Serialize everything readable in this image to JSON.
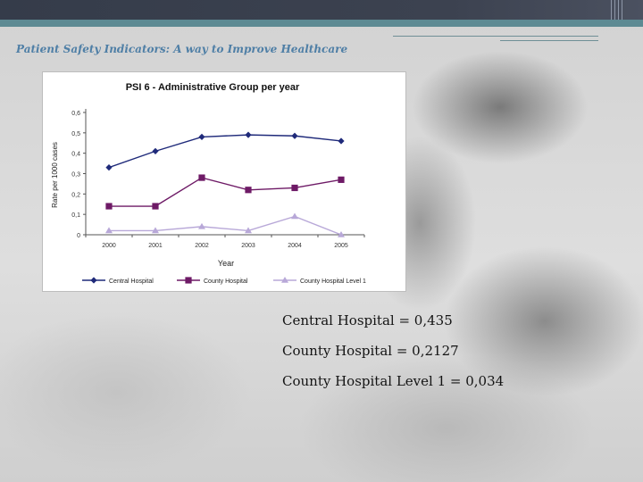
{
  "slide": {
    "title": "Patient Safety Indicators: A way to Improve Healthcare"
  },
  "notes": [
    "Central Hospital = 0,435",
    "County Hospital = 0,2127",
    "County Hospital Level 1 = 0,034"
  ],
  "chart_data": {
    "type": "line",
    "title": "PSI 6 - Administrative Group per year",
    "xlabel": "Year",
    "ylabel": "Rate per 1000 cases",
    "categories": [
      "2000",
      "2001",
      "2002",
      "2003",
      "2004",
      "2005"
    ],
    "y_ticks": [
      "0",
      "0,1",
      "0,2",
      "0,3",
      "0,4",
      "0,5",
      "0,6"
    ],
    "ylim": [
      0,
      0.6
    ],
    "grid": false,
    "legend_position": "bottom",
    "series": [
      {
        "name": "Central Hospital",
        "values": [
          0.33,
          0.41,
          0.48,
          0.49,
          0.485,
          0.46
        ],
        "color": "#1f2a7a",
        "marker": "diamond"
      },
      {
        "name": "County Hospital",
        "values": [
          0.14,
          0.14,
          0.28,
          0.22,
          0.23,
          0.27
        ],
        "color": "#6e1a66",
        "marker": "square"
      },
      {
        "name": "County Hospital Level 1",
        "values": [
          0.02,
          0.02,
          0.04,
          0.02,
          0.09,
          0.0
        ],
        "color": "#b8a8d8",
        "marker": "triangle"
      }
    ]
  }
}
